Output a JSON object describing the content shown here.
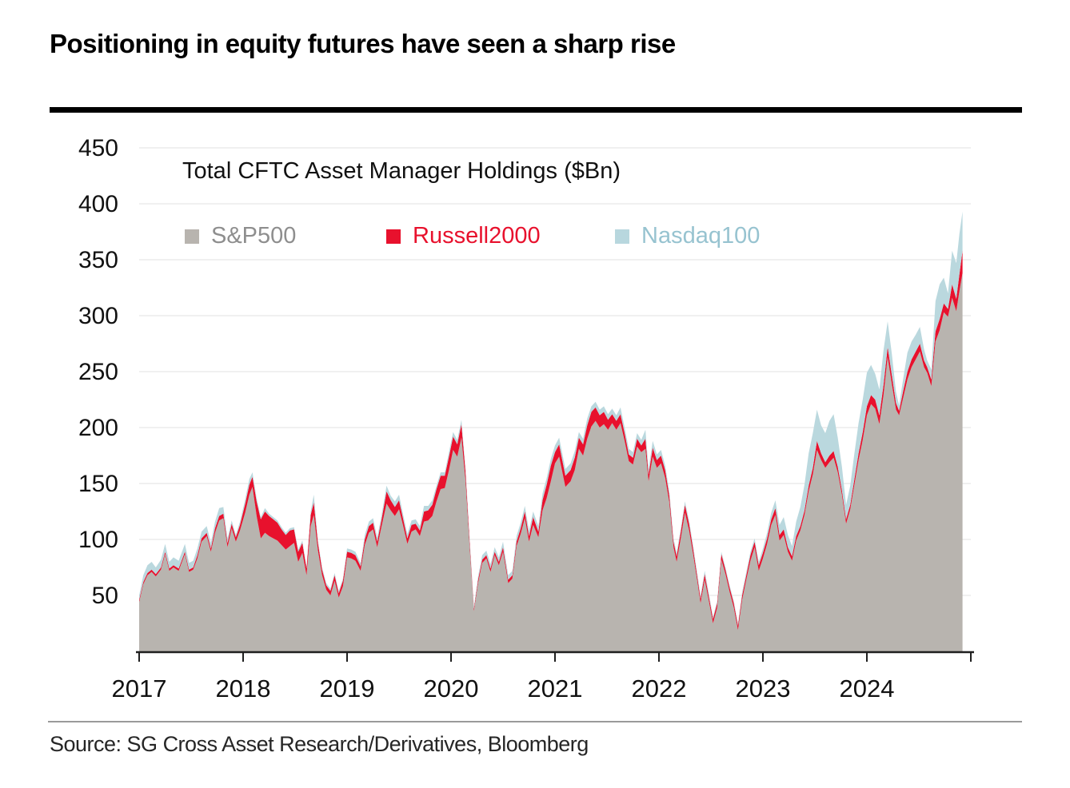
{
  "header": {
    "title": "Positioning in equity futures have seen a sharp rise"
  },
  "footer": {
    "source": "Source: SG Cross Asset Research/Derivatives, Bloomberg"
  },
  "chart_data": {
    "type": "area",
    "stacked": true,
    "subtitle": "Total CFTC Asset Manager Holdings ($Bn)",
    "unit": "$Bn",
    "legend": [
      {
        "label": "S&P500",
        "swatch": "#b8b4af",
        "text_color": "#8e8e8e"
      },
      {
        "label": "Russell2000",
        "swatch": "#e8112d",
        "text_color": "#e8112d"
      },
      {
        "label": "Nasdaq100",
        "swatch": "#b8d7de",
        "text_color": "#97c3d0"
      }
    ],
    "series_names": [
      "S&P500",
      "Russell2000",
      "Nasdaq100"
    ],
    "colors": {
      "sp500": "#b8b4af",
      "russell2000": "#e8112d",
      "nasdaq100": "#bad8de",
      "gridline": "#ececec",
      "axis": "#1f1f1f",
      "tick_label": "#111111"
    },
    "x_axis": {
      "ticks": [
        2017,
        2018,
        2019,
        2020,
        2021,
        2022,
        2023,
        2024,
        2025
      ],
      "tick_labels": [
        "2017",
        "2018",
        "2019",
        "2020",
        "2021",
        "2022",
        "2023",
        "2024",
        ""
      ],
      "range": [
        2017,
        2025.08
      ]
    },
    "y_axis": {
      "ticks": [
        50,
        100,
        150,
        200,
        250,
        300,
        350,
        400,
        450
      ],
      "range": [
        0,
        465
      ],
      "gridlines": true
    },
    "points_format": [
      "year",
      "sp500",
      "russell2000",
      "nasdaq100"
    ],
    "points": [
      [
        2017.0,
        44,
        2,
        4
      ],
      [
        2017.04,
        60,
        2,
        6
      ],
      [
        2017.08,
        68,
        2,
        7
      ],
      [
        2017.12,
        71,
        2,
        7
      ],
      [
        2017.16,
        67,
        2,
        6
      ],
      [
        2017.21,
        73,
        2,
        7
      ],
      [
        2017.25,
        87,
        2,
        7
      ],
      [
        2017.29,
        72,
        2,
        6
      ],
      [
        2017.33,
        75,
        2,
        7
      ],
      [
        2017.38,
        72,
        2,
        7
      ],
      [
        2017.44,
        87,
        2,
        7
      ],
      [
        2017.48,
        71,
        2,
        6
      ],
      [
        2017.52,
        73,
        2,
        6
      ],
      [
        2017.56,
        83,
        3,
        6
      ],
      [
        2017.6,
        98,
        3,
        6
      ],
      [
        2017.65,
        103,
        3,
        6
      ],
      [
        2017.69,
        89,
        3,
        5
      ],
      [
        2017.73,
        106,
        4,
        6
      ],
      [
        2017.77,
        117,
        4,
        7
      ],
      [
        2017.81,
        119,
        4,
        6
      ],
      [
        2017.85,
        93,
        4,
        4
      ],
      [
        2017.89,
        110,
        4,
        3
      ],
      [
        2017.93,
        98,
        4,
        2
      ],
      [
        2017.97,
        108,
        5,
        3
      ],
      [
        2018.02,
        124,
        8,
        4
      ],
      [
        2018.06,
        140,
        9,
        5
      ],
      [
        2018.09,
        147,
        9,
        4
      ],
      [
        2018.13,
        121,
        13,
        3
      ],
      [
        2018.17,
        101,
        17,
        2
      ],
      [
        2018.21,
        106,
        19,
        3
      ],
      [
        2018.25,
        103,
        18,
        2
      ],
      [
        2018.29,
        101,
        17,
        2
      ],
      [
        2018.33,
        99,
        16,
        2
      ],
      [
        2018.37,
        95,
        14,
        2
      ],
      [
        2018.41,
        91,
        13,
        2
      ],
      [
        2018.45,
        94,
        14,
        2
      ],
      [
        2018.49,
        97,
        12,
        2
      ],
      [
        2018.53,
        80,
        9,
        2
      ],
      [
        2018.57,
        88,
        9,
        2
      ],
      [
        2018.61,
        68,
        6,
        2
      ],
      [
        2018.65,
        112,
        10,
        3
      ],
      [
        2018.68,
        122,
        11,
        7
      ],
      [
        2018.72,
        90,
        7,
        2
      ],
      [
        2018.76,
        68,
        5,
        2
      ],
      [
        2018.8,
        55,
        4,
        2
      ],
      [
        2018.84,
        50,
        4,
        2
      ],
      [
        2018.88,
        63,
        5,
        2
      ],
      [
        2018.92,
        48,
        4,
        2
      ],
      [
        2018.96,
        58,
        5,
        2
      ],
      [
        2019.0,
        84,
        5,
        3
      ],
      [
        2019.04,
        83,
        5,
        3
      ],
      [
        2019.08,
        81,
        5,
        3
      ],
      [
        2019.13,
        72,
        4,
        3
      ],
      [
        2019.17,
        95,
        5,
        4
      ],
      [
        2019.21,
        106,
        6,
        4
      ],
      [
        2019.25,
        109,
        6,
        4
      ],
      [
        2019.29,
        93,
        5,
        4
      ],
      [
        2019.33,
        111,
        6,
        4
      ],
      [
        2019.38,
        132,
        11,
        5
      ],
      [
        2019.42,
        126,
        9,
        4
      ],
      [
        2019.46,
        121,
        8,
        5
      ],
      [
        2019.5,
        127,
        8,
        5
      ],
      [
        2019.54,
        112,
        6,
        4
      ],
      [
        2019.58,
        96,
        5,
        4
      ],
      [
        2019.62,
        107,
        6,
        4
      ],
      [
        2019.66,
        109,
        5,
        4
      ],
      [
        2019.7,
        103,
        5,
        4
      ],
      [
        2019.74,
        116,
        9,
        5
      ],
      [
        2019.78,
        117,
        9,
        4
      ],
      [
        2019.82,
        121,
        10,
        4
      ],
      [
        2019.86,
        134,
        11,
        3
      ],
      [
        2019.9,
        145,
        12,
        3
      ],
      [
        2019.94,
        146,
        11,
        3
      ],
      [
        2019.98,
        162,
        12,
        4
      ],
      [
        2020.02,
        180,
        12,
        4
      ],
      [
        2020.06,
        174,
        11,
        4
      ],
      [
        2020.1,
        191,
        12,
        4
      ],
      [
        2020.14,
        152,
        8,
        3
      ],
      [
        2020.18,
        92,
        5,
        3
      ],
      [
        2020.22,
        36,
        2,
        2
      ],
      [
        2020.26,
        61,
        3,
        3
      ],
      [
        2020.3,
        79,
        3,
        4
      ],
      [
        2020.34,
        83,
        3,
        4
      ],
      [
        2020.38,
        71,
        3,
        4
      ],
      [
        2020.42,
        86,
        3,
        4
      ],
      [
        2020.46,
        77,
        3,
        4
      ],
      [
        2020.5,
        89,
        4,
        5
      ],
      [
        2020.55,
        61,
        3,
        4
      ],
      [
        2020.59,
        65,
        3,
        4
      ],
      [
        2020.63,
        94,
        4,
        5
      ],
      [
        2020.67,
        105,
        5,
        5
      ],
      [
        2020.71,
        119,
        6,
        5
      ],
      [
        2020.75,
        98,
        5,
        5
      ],
      [
        2020.79,
        113,
        7,
        5
      ],
      [
        2020.84,
        102,
        5,
        5
      ],
      [
        2020.88,
        126,
        9,
        6
      ],
      [
        2020.92,
        137,
        12,
        6
      ],
      [
        2020.96,
        152,
        14,
        6
      ],
      [
        2021.0,
        168,
        10,
        6
      ],
      [
        2021.04,
        174,
        11,
        6
      ],
      [
        2021.1,
        147,
        10,
        6
      ],
      [
        2021.15,
        152,
        10,
        6
      ],
      [
        2021.19,
        162,
        11,
        6
      ],
      [
        2021.23,
        181,
        10,
        5
      ],
      [
        2021.27,
        175,
        10,
        5
      ],
      [
        2021.31,
        190,
        12,
        6
      ],
      [
        2021.35,
        201,
        13,
        5
      ],
      [
        2021.39,
        206,
        12,
        5
      ],
      [
        2021.43,
        200,
        11,
        5
      ],
      [
        2021.47,
        203,
        11,
        5
      ],
      [
        2021.51,
        198,
        9,
        5
      ],
      [
        2021.55,
        204,
        8,
        5
      ],
      [
        2021.59,
        198,
        8,
        5
      ],
      [
        2021.63,
        204,
        8,
        6
      ],
      [
        2021.67,
        188,
        7,
        5
      ],
      [
        2021.71,
        170,
        6,
        5
      ],
      [
        2021.75,
        167,
        6,
        5
      ],
      [
        2021.79,
        183,
        7,
        5
      ],
      [
        2021.83,
        178,
        6,
        5
      ],
      [
        2021.87,
        181,
        9,
        8
      ],
      [
        2021.9,
        152,
        6,
        5
      ],
      [
        2021.94,
        174,
        8,
        6
      ],
      [
        2021.98,
        164,
        7,
        5
      ],
      [
        2022.02,
        168,
        7,
        5
      ],
      [
        2022.06,
        155,
        7,
        4
      ],
      [
        2022.1,
        133,
        6,
        4
      ],
      [
        2022.14,
        93,
        5,
        3
      ],
      [
        2022.17,
        80,
        5,
        3
      ],
      [
        2022.21,
        101,
        6,
        3
      ],
      [
        2022.25,
        124,
        7,
        3
      ],
      [
        2022.29,
        108,
        6,
        3
      ],
      [
        2022.33,
        86,
        5,
        3
      ],
      [
        2022.37,
        62,
        4,
        3
      ],
      [
        2022.4,
        43,
        4,
        3
      ],
      [
        2022.44,
        64,
        5,
        3
      ],
      [
        2022.48,
        45,
        4,
        3
      ],
      [
        2022.52,
        25,
        4,
        2
      ],
      [
        2022.56,
        39,
        4,
        2
      ],
      [
        2022.6,
        82,
        5,
        2
      ],
      [
        2022.64,
        69,
        4,
        2
      ],
      [
        2022.68,
        53,
        4,
        2
      ],
      [
        2022.72,
        39,
        4,
        2
      ],
      [
        2022.76,
        19,
        4,
        2
      ],
      [
        2022.8,
        46,
        4,
        3
      ],
      [
        2022.84,
        64,
        4,
        3
      ],
      [
        2022.88,
        81,
        5,
        3
      ],
      [
        2022.92,
        93,
        5,
        3
      ],
      [
        2022.96,
        72,
        5,
        3
      ],
      [
        2023.0,
        83,
        5,
        4
      ],
      [
        2023.04,
        96,
        5,
        5
      ],
      [
        2023.08,
        113,
        5,
        6
      ],
      [
        2023.12,
        122,
        6,
        7
      ],
      [
        2023.16,
        99,
        5,
        9
      ],
      [
        2023.2,
        104,
        5,
        11
      ],
      [
        2023.24,
        89,
        4,
        11
      ],
      [
        2023.28,
        81,
        4,
        9
      ],
      [
        2023.32,
        99,
        4,
        13
      ],
      [
        2023.36,
        108,
        4,
        17
      ],
      [
        2023.4,
        122,
        4,
        23
      ],
      [
        2023.44,
        143,
        5,
        29
      ],
      [
        2023.48,
        158,
        6,
        31
      ],
      [
        2023.52,
        180,
        8,
        28
      ],
      [
        2023.56,
        171,
        6,
        25
      ],
      [
        2023.6,
        164,
        5,
        26
      ],
      [
        2023.64,
        169,
        6,
        31
      ],
      [
        2023.68,
        173,
        6,
        33
      ],
      [
        2023.72,
        160,
        5,
        26
      ],
      [
        2023.76,
        140,
        4,
        21
      ],
      [
        2023.8,
        114,
        4,
        13
      ],
      [
        2023.84,
        127,
        4,
        17
      ],
      [
        2023.88,
        149,
        5,
        23
      ],
      [
        2023.92,
        171,
        6,
        27
      ],
      [
        2023.96,
        189,
        7,
        29
      ],
      [
        2024.0,
        211,
        8,
        30
      ],
      [
        2024.04,
        221,
        8,
        27
      ],
      [
        2024.08,
        217,
        8,
        23
      ],
      [
        2024.12,
        203,
        8,
        23
      ],
      [
        2024.16,
        229,
        9,
        31
      ],
      [
        2024.2,
        263,
        9,
        23
      ],
      [
        2024.24,
        239,
        8,
        19
      ],
      [
        2024.28,
        216,
        6,
        10
      ],
      [
        2024.31,
        211,
        4,
        5
      ],
      [
        2024.35,
        227,
        6,
        11
      ],
      [
        2024.39,
        243,
        7,
        17
      ],
      [
        2024.43,
        254,
        7,
        16
      ],
      [
        2024.47,
        261,
        7,
        15
      ],
      [
        2024.51,
        268,
        7,
        15
      ],
      [
        2024.55,
        254,
        6,
        10
      ],
      [
        2024.58,
        249,
        5,
        6
      ],
      [
        2024.62,
        237,
        6,
        9
      ],
      [
        2024.66,
        277,
        9,
        27
      ],
      [
        2024.7,
        287,
        10,
        31
      ],
      [
        2024.74,
        303,
        8,
        23
      ],
      [
        2024.78,
        299,
        7,
        14
      ],
      [
        2024.82,
        316,
        12,
        30
      ],
      [
        2024.86,
        304,
        11,
        32
      ],
      [
        2024.89,
        322,
        15,
        36
      ],
      [
        2024.92,
        338,
        20,
        35
      ]
    ]
  }
}
